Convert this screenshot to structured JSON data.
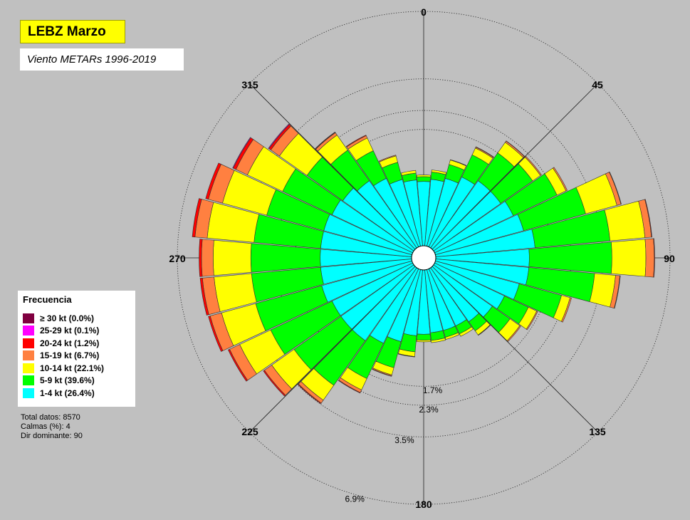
{
  "title": "LEBZ Marzo",
  "subtitle": "Viento METARs 1996-2019",
  "legend": {
    "title": "Frecuencia",
    "items": [
      {
        "label": "≥ 30  kt (0.0%)",
        "color": "#800040"
      },
      {
        "label": "25-29 kt (0.1%)",
        "color": "#ff00ff"
      },
      {
        "label": "20-24 kt (1.2%)",
        "color": "#ff0000"
      },
      {
        "label": "15-19 kt (6.7%)",
        "color": "#ff8040"
      },
      {
        "label": "10-14 kt (22.1%)",
        "color": "#ffff00"
      },
      {
        "label": "5-9 kt (39.6%)",
        "color": "#00ff00"
      },
      {
        "label": "1-4 kt (26.4%)",
        "color": "#00ffff"
      }
    ]
  },
  "stats": {
    "total_label": "Total datos:",
    "total_value": "8570",
    "calm_label": "Calmas (%):",
    "calm_value": "4",
    "dominant_label": "Dir dominante:",
    "dominant_value": "90"
  },
  "chart_data": {
    "type": "polar-bar",
    "title": "LEBZ Marzo",
    "subtitle": "Viento METARs 1996-2019",
    "ring_labels": [
      "1.7%",
      "2.3%",
      "3.5%",
      "6.9%"
    ],
    "ring_values": [
      1.7,
      2.3,
      3.5,
      6.9
    ],
    "direction_labels": [
      "0",
      "45",
      "90",
      "135",
      "180",
      "225",
      "270",
      "315"
    ],
    "speed_bins": [
      "1-4 kt",
      "5-9 kt",
      "10-14 kt",
      "15-19 kt",
      "20-24 kt",
      "25-29 kt",
      "≥ 30 kt"
    ],
    "calm_percent": 4,
    "bin_colors": [
      "#00ffff",
      "#00ff00",
      "#ffff00",
      "#ff8040",
      "#ff0000",
      "#ff00ff",
      "#800040"
    ],
    "directions": [
      {
        "dir": 0,
        "values": [
          0.52,
          0.08,
          0.03,
          0.0,
          0.0,
          0.0,
          0.0
        ]
      },
      {
        "dir": 10,
        "values": [
          0.56,
          0.13,
          0.04,
          0.0,
          0.0,
          0.0,
          0.0
        ]
      },
      {
        "dir": 20,
        "values": [
          0.62,
          0.28,
          0.1,
          0.01,
          0.0,
          0.0,
          0.0
        ]
      },
      {
        "dir": 30,
        "values": [
          0.75,
          0.55,
          0.2,
          0.03,
          0.01,
          0.0,
          0.0
        ]
      },
      {
        "dir": 40,
        "values": [
          0.85,
          0.85,
          0.4,
          0.05,
          0.01,
          0.0,
          0.0
        ]
      },
      {
        "dir": 50,
        "values": [
          0.85,
          1.0,
          0.3,
          0.04,
          0.0,
          0.0,
          0.0
        ]
      },
      {
        "dir": 60,
        "values": [
          0.95,
          1.35,
          0.35,
          0.05,
          0.0,
          0.0,
          0.0
        ]
      },
      {
        "dir": 70,
        "values": [
          1.05,
          2.0,
          1.4,
          0.2,
          0.02,
          0.0,
          0.0
        ]
      },
      {
        "dir": 80,
        "values": [
          1.25,
          2.6,
          1.7,
          0.35,
          0.03,
          0.0,
          0.0
        ]
      },
      {
        "dir": 90,
        "values": [
          1.1,
          2.8,
          1.65,
          0.45,
          0.03,
          0.0,
          0.0
        ]
      },
      {
        "dir": 100,
        "values": [
          1.1,
          2.1,
          0.9,
          0.2,
          0.02,
          0.0,
          0.0
        ]
      },
      {
        "dir": 110,
        "values": [
          0.95,
          1.2,
          0.3,
          0.05,
          0.0,
          0.0,
          0.0
        ]
      },
      {
        "dir": 120,
        "values": [
          0.75,
          0.6,
          0.25,
          0.03,
          0.0,
          0.0,
          0.0
        ]
      },
      {
        "dir": 130,
        "values": [
          0.65,
          0.45,
          0.3,
          0.03,
          0.0,
          0.0,
          0.0
        ]
      },
      {
        "dir": 140,
        "values": [
          0.55,
          0.2,
          0.1,
          0.01,
          0.0,
          0.0,
          0.0
        ]
      },
      {
        "dir": 150,
        "values": [
          0.5,
          0.15,
          0.05,
          0.0,
          0.0,
          0.0,
          0.0
        ]
      },
      {
        "dir": 160,
        "values": [
          0.5,
          0.12,
          0.04,
          0.0,
          0.0,
          0.0,
          0.0
        ]
      },
      {
        "dir": 170,
        "values": [
          0.5,
          0.13,
          0.04,
          0.0,
          0.0,
          0.0,
          0.0
        ]
      },
      {
        "dir": 180,
        "values": [
          0.52,
          0.1,
          0.03,
          0.0,
          0.0,
          0.0,
          0.0
        ]
      },
      {
        "dir": 190,
        "values": [
          0.55,
          0.3,
          0.1,
          0.01,
          0.0,
          0.0,
          0.0
        ]
      },
      {
        "dir": 200,
        "values": [
          0.7,
          0.6,
          0.2,
          0.03,
          0.01,
          0.0,
          0.0
        ]
      },
      {
        "dir": 210,
        "values": [
          0.85,
          1.0,
          0.4,
          0.1,
          0.02,
          0.0,
          0.0
        ]
      },
      {
        "dir": 220,
        "values": [
          1.0,
          1.6,
          0.7,
          0.15,
          0.03,
          0.0,
          0.0
        ]
      },
      {
        "dir": 230,
        "values": [
          1.0,
          1.7,
          1.1,
          0.4,
          0.06,
          0.0,
          0.0
        ]
      },
      {
        "dir": 240,
        "values": [
          1.0,
          2.1,
          1.5,
          0.55,
          0.08,
          0.0,
          0.0
        ]
      },
      {
        "dir": 250,
        "values": [
          1.1,
          2.2,
          1.6,
          0.6,
          0.1,
          0.0,
          0.0
        ]
      },
      {
        "dir": 260,
        "values": [
          1.05,
          2.2,
          1.7,
          0.6,
          0.12,
          0.0,
          0.0
        ]
      },
      {
        "dir": 270,
        "values": [
          1.05,
          2.2,
          1.7,
          0.6,
          0.13,
          0.0,
          0.0
        ]
      },
      {
        "dir": 280,
        "values": [
          1.05,
          2.1,
          2.15,
          0.65,
          0.15,
          0.0,
          0.0
        ]
      },
      {
        "dir": 290,
        "values": [
          1.05,
          1.8,
          2.0,
          0.75,
          0.15,
          0.0,
          0.0
        ]
      },
      {
        "dir": 300,
        "values": [
          1.0,
          1.6,
          1.6,
          0.6,
          0.15,
          0.03,
          0.0
        ]
      },
      {
        "dir": 310,
        "values": [
          0.95,
          1.2,
          1.25,
          0.45,
          0.1,
          0.03,
          0.0
        ]
      },
      {
        "dir": 320,
        "values": [
          0.85,
          0.95,
          0.6,
          0.1,
          0.02,
          0.01,
          0.0
        ]
      },
      {
        "dir": 330,
        "values": [
          0.72,
          0.7,
          0.4,
          0.08,
          0.02,
          0.0,
          0.0
        ]
      },
      {
        "dir": 340,
        "values": [
          0.6,
          0.35,
          0.15,
          0.02,
          0.0,
          0.0,
          0.0
        ]
      },
      {
        "dir": 350,
        "values": [
          0.55,
          0.12,
          0.05,
          0.0,
          0.0,
          0.0,
          0.0
        ]
      }
    ]
  }
}
